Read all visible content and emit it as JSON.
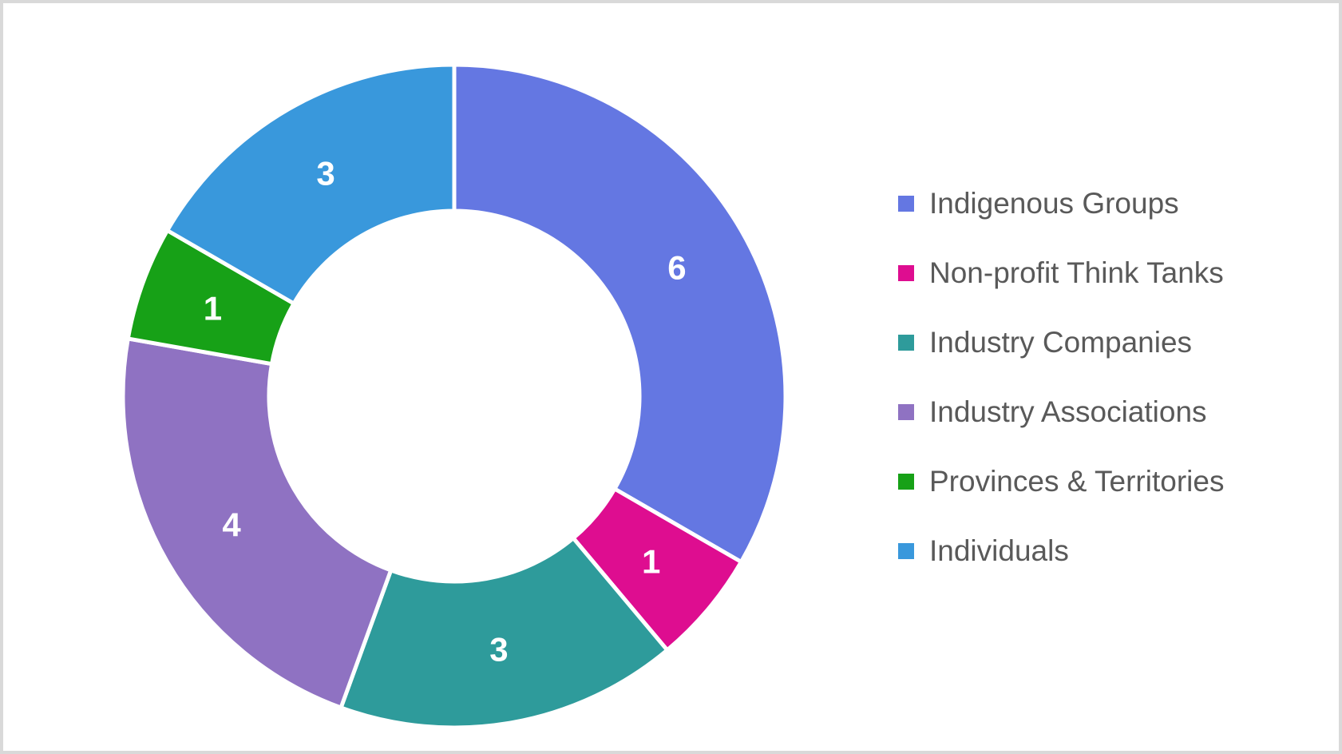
{
  "page": {
    "background_color": "#ffffff",
    "border_color": "#d9d9d9"
  },
  "chart_data": {
    "type": "pie",
    "subtype": "donut",
    "title": "",
    "categories": [
      "Indigenous Groups",
      "Non-profit Think Tanks",
      "Industry Companies",
      "Industry Associations",
      "Provinces & Territories",
      "Individuals"
    ],
    "values": [
      6,
      1,
      3,
      4,
      1,
      3
    ],
    "data_labels": [
      "6",
      "1",
      "3",
      "4",
      "1",
      "3"
    ],
    "colors": [
      "#6477e2",
      "#de0d90",
      "#2e9b9b",
      "#8f72c2",
      "#17a117",
      "#3998dc"
    ],
    "total": 18,
    "start_angle_deg": 0,
    "direction": "clockwise",
    "legend_position": "right",
    "data_label_color": "#ffffff",
    "separator_color": "#ffffff"
  },
  "legend": {
    "text_color": "#595959",
    "items": [
      {
        "label": "Indigenous Groups",
        "color": "#6477e2"
      },
      {
        "label": "Non-profit Think Tanks",
        "color": "#de0d90"
      },
      {
        "label": "Industry Companies",
        "color": "#2e9b9b"
      },
      {
        "label": "Industry Associations",
        "color": "#8f72c2"
      },
      {
        "label": "Provinces & Territories",
        "color": "#17a117"
      },
      {
        "label": "Individuals",
        "color": "#3998dc"
      }
    ]
  }
}
